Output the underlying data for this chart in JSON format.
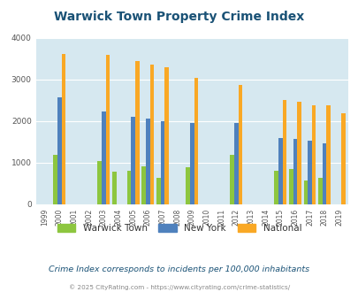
{
  "title": "Warwick Town Property Crime Index",
  "years": [
    1999,
    2000,
    2001,
    2002,
    2003,
    2004,
    2005,
    2006,
    2007,
    2008,
    2009,
    2010,
    2011,
    2012,
    2013,
    2014,
    2015,
    2016,
    2017,
    2018,
    2019
  ],
  "warwick": [
    0,
    1200,
    0,
    0,
    1050,
    780,
    800,
    920,
    640,
    0,
    900,
    0,
    0,
    1200,
    0,
    0,
    800,
    840,
    570,
    640,
    0
  ],
  "new_york": [
    0,
    2570,
    0,
    0,
    2230,
    0,
    2110,
    2070,
    1990,
    0,
    1960,
    0,
    0,
    1960,
    0,
    0,
    1600,
    1570,
    1530,
    1460,
    0
  ],
  "national": [
    0,
    3620,
    0,
    0,
    3600,
    0,
    3450,
    3360,
    3300,
    0,
    3050,
    0,
    0,
    2870,
    0,
    0,
    2510,
    2470,
    2390,
    2380,
    2180
  ],
  "warwick_color": "#8dc63f",
  "new_york_color": "#4f81bd",
  "national_color": "#f9a825",
  "background_color": "#d6e8f0",
  "ylim": [
    0,
    4000
  ],
  "yticks": [
    0,
    1000,
    2000,
    3000,
    4000
  ],
  "note": "Crime Index corresponds to incidents per 100,000 inhabitants",
  "footer": "© 2025 CityRating.com - https://www.cityrating.com/crime-statistics/",
  "title_color": "#1a5276",
  "note_color": "#1a5276",
  "footer_color": "#888888"
}
